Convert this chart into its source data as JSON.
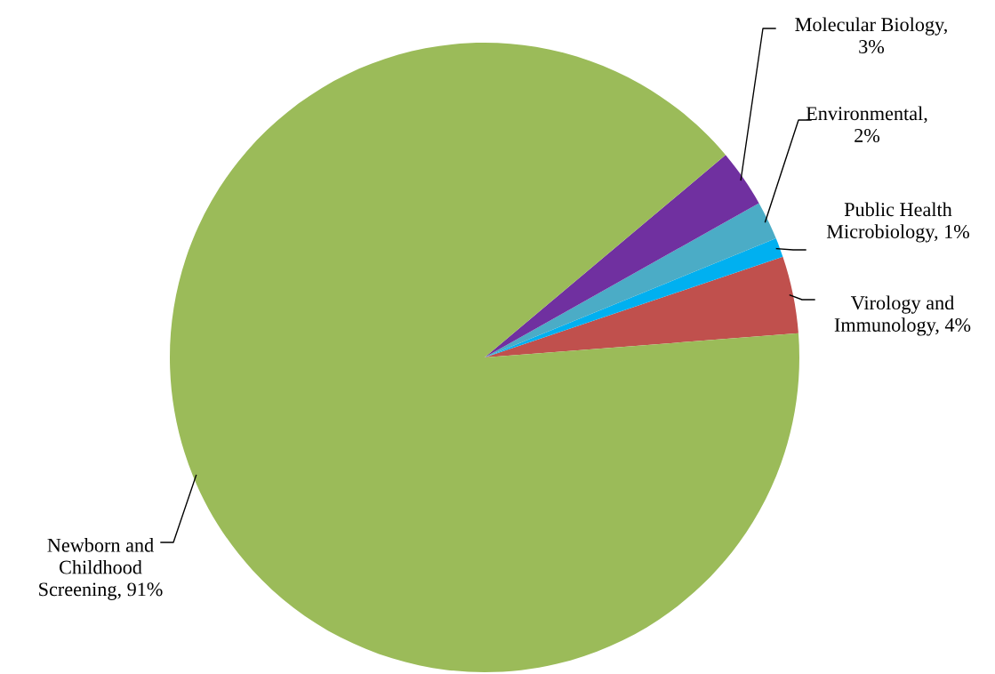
{
  "chart_data": {
    "type": "pie",
    "categories": [
      "Virology and Immunology, 4%",
      "Public Health Microbiology, 1%",
      "Environmental, 2%",
      "Molecular Biology, 3%",
      "Newborn and Childhood Screening, 91%"
    ],
    "values": [
      4,
      1,
      2,
      3,
      91
    ],
    "colors": [
      "#c0504d",
      "#00b0f0",
      "#4bacc6",
      "#7030a0",
      "#9bbb59"
    ]
  }
}
